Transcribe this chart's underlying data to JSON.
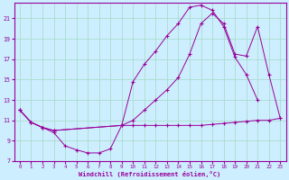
{
  "xlabel": "Windchill (Refroidissement éolien,°C)",
  "background_color": "#cceeff",
  "grid_color": "#aaddcc",
  "line_color": "#990099",
  "xlim": [
    -0.5,
    23.5
  ],
  "ylim": [
    7,
    22.5
  ],
  "yticks": [
    7,
    9,
    11,
    13,
    15,
    17,
    19,
    21
  ],
  "xticks": [
    0,
    1,
    2,
    3,
    4,
    5,
    6,
    7,
    8,
    9,
    10,
    11,
    12,
    13,
    14,
    15,
    16,
    17,
    18,
    19,
    20,
    21,
    22,
    23
  ],
  "series1_x": [
    0,
    1,
    2,
    3,
    4,
    5,
    6,
    7,
    8,
    9,
    10,
    11,
    12,
    13,
    14,
    15,
    16,
    17,
    18,
    19,
    20,
    21,
    22,
    23
  ],
  "series1_y": [
    12.0,
    10.8,
    10.3,
    9.8,
    8.5,
    8.1,
    7.8,
    7.8,
    8.2,
    10.5,
    10.5,
    10.5,
    10.5,
    10.5,
    10.5,
    10.5,
    10.5,
    10.6,
    10.7,
    10.8,
    10.9,
    11.0,
    11.0,
    11.2
  ],
  "series2_x": [
    0,
    1,
    2,
    3,
    9,
    10,
    11,
    12,
    13,
    14,
    15,
    16,
    17,
    18,
    19,
    20,
    21
  ],
  "series2_y": [
    12.0,
    10.8,
    10.3,
    10.0,
    10.5,
    14.8,
    16.5,
    17.8,
    19.3,
    20.5,
    22.1,
    22.3,
    21.8,
    20.2,
    17.2,
    15.5,
    13.0
  ],
  "series3_x": [
    0,
    1,
    2,
    3,
    9,
    10,
    11,
    12,
    13,
    14,
    15,
    16,
    17,
    18,
    19,
    20,
    21,
    22,
    23
  ],
  "series3_y": [
    12.0,
    10.8,
    10.3,
    10.0,
    10.5,
    11.0,
    12.0,
    13.0,
    14.0,
    15.2,
    17.5,
    20.5,
    21.5,
    20.5,
    17.5,
    17.3,
    20.2,
    15.5,
    11.2
  ]
}
